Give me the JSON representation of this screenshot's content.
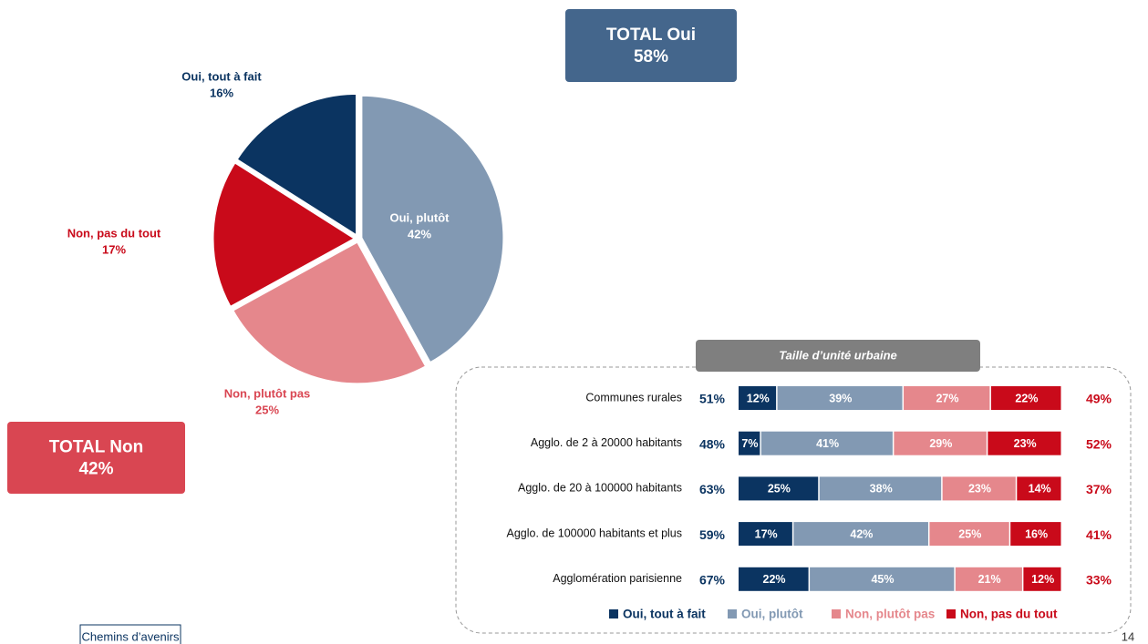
{
  "chart_data": [
    {
      "type": "pie",
      "categories": [
        "Oui, tout à fait",
        "Oui, plutôt",
        "Non, plutôt pas",
        "Non, pas du tout"
      ],
      "values": [
        16,
        42,
        25,
        17
      ],
      "value_labels": [
        "16%",
        "42%",
        "25%",
        "17%"
      ],
      "colors": [
        "#0b3461",
        "#8299b3",
        "#e5878c",
        "#c90a1a"
      ],
      "annotations": [
        {
          "text": "TOTAL Oui",
          "value": 58,
          "value_label": "58%",
          "color": "#44668c"
        },
        {
          "text": "TOTAL Non",
          "value": 42,
          "value_label": "42%",
          "color": "#d94652"
        }
      ]
    },
    {
      "type": "stacked_bar_horizontal",
      "subtitle": "Taille d’unité urbaine",
      "categories": [
        "Communes rurales",
        "Agglo. de 2 à 20000 habitants",
        "Agglo. de 20 à 100000 habitants",
        "Agglo. de 100000 habitants et plus",
        "Agglomération parisienne"
      ],
      "xlim": [
        0,
        100
      ],
      "series": [
        {
          "name": "Oui, tout à fait",
          "color": "#0b3461",
          "values": [
            12,
            7,
            25,
            17,
            22
          ],
          "value_labels": [
            "12%",
            "7%",
            "25%",
            "17%",
            "22%"
          ]
        },
        {
          "name": "Oui, plutôt",
          "color": "#8299b3",
          "values": [
            39,
            41,
            38,
            42,
            45
          ],
          "value_labels": [
            "39%",
            "41%",
            "38%",
            "42%",
            "45%"
          ]
        },
        {
          "name": "Non, plutôt pas",
          "color": "#e5878c",
          "values": [
            27,
            29,
            23,
            25,
            21
          ],
          "value_labels": [
            "27%",
            "29%",
            "23%",
            "25%",
            "21%"
          ]
        },
        {
          "name": "Non, pas du tout",
          "color": "#c90a1a",
          "values": [
            22,
            23,
            14,
            16,
            12
          ],
          "value_labels": [
            "22%",
            "23%",
            "14%",
            "16%",
            "12%"
          ]
        }
      ],
      "totals_oui": {
        "color": "#0b3461",
        "values": [
          51,
          48,
          63,
          59,
          67
        ],
        "value_labels": [
          "51%",
          "48%",
          "63%",
          "59%",
          "67%"
        ]
      },
      "totals_non": {
        "color": "#c90a1a",
        "values": [
          49,
          52,
          37,
          41,
          33
        ],
        "value_labels": [
          "49%",
          "52%",
          "37%",
          "41%",
          "33%"
        ]
      }
    }
  ],
  "footer": {
    "logo": "Chemins d’avenirs",
    "page": "14"
  }
}
